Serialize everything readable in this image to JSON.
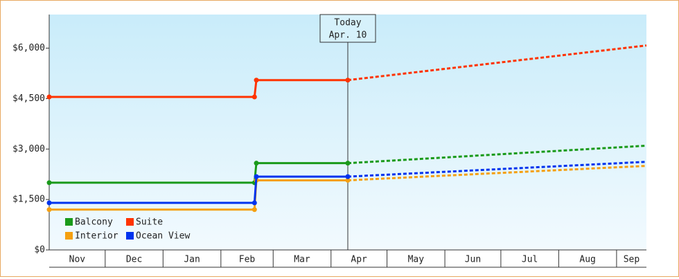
{
  "chart_data": {
    "type": "line",
    "x": [
      0,
      110,
      111,
      160
    ],
    "forecast_x": [
      160,
      320
    ],
    "series": [
      {
        "name": "Balcony",
        "color": "#1a9a1a",
        "values": [
          2000,
          2000,
          2580,
          2580
        ],
        "forecast": [
          2580,
          3100
        ]
      },
      {
        "name": "Suite",
        "color": "#ff3300",
        "values": [
          4550,
          4550,
          5050,
          5050
        ],
        "forecast": [
          5050,
          6080
        ]
      },
      {
        "name": "Interior",
        "color": "#f5a010",
        "values": [
          1200,
          1200,
          2070,
          2070
        ],
        "forecast": [
          2070,
          2500
        ]
      },
      {
        "name": "Ocean View",
        "color": "#0033ee",
        "values": [
          1400,
          1400,
          2180,
          2180
        ],
        "forecast": [
          2180,
          2620
        ]
      }
    ],
    "xlim": [
      0,
      320
    ],
    "xticks": [
      {
        "value": 0,
        "label": "Nov"
      },
      {
        "value": 30,
        "label": "Dec"
      },
      {
        "value": 61,
        "label": "Jan"
      },
      {
        "value": 92,
        "label": "Feb"
      },
      {
        "value": 120,
        "label": "Mar"
      },
      {
        "value": 151,
        "label": "Apr"
      },
      {
        "value": 181,
        "label": "May"
      },
      {
        "value": 212,
        "label": "Jun"
      },
      {
        "value": 242,
        "label": "Jul"
      },
      {
        "value": 273,
        "label": "Aug"
      },
      {
        "value": 304,
        "label": "Sep"
      }
    ],
    "ylim": [
      0,
      7000
    ],
    "yticks": [
      {
        "value": 0,
        "label": "$0"
      },
      {
        "value": 1500,
        "label": "$1,500"
      },
      {
        "value": 3000,
        "label": "$3,000"
      },
      {
        "value": 4500,
        "label": "$4,500"
      },
      {
        "value": 6000,
        "label": "$6,000"
      }
    ],
    "annotation": {
      "x": 160,
      "lines": [
        "Today",
        "Apr. 10"
      ]
    },
    "legend": "bottom-left"
  }
}
